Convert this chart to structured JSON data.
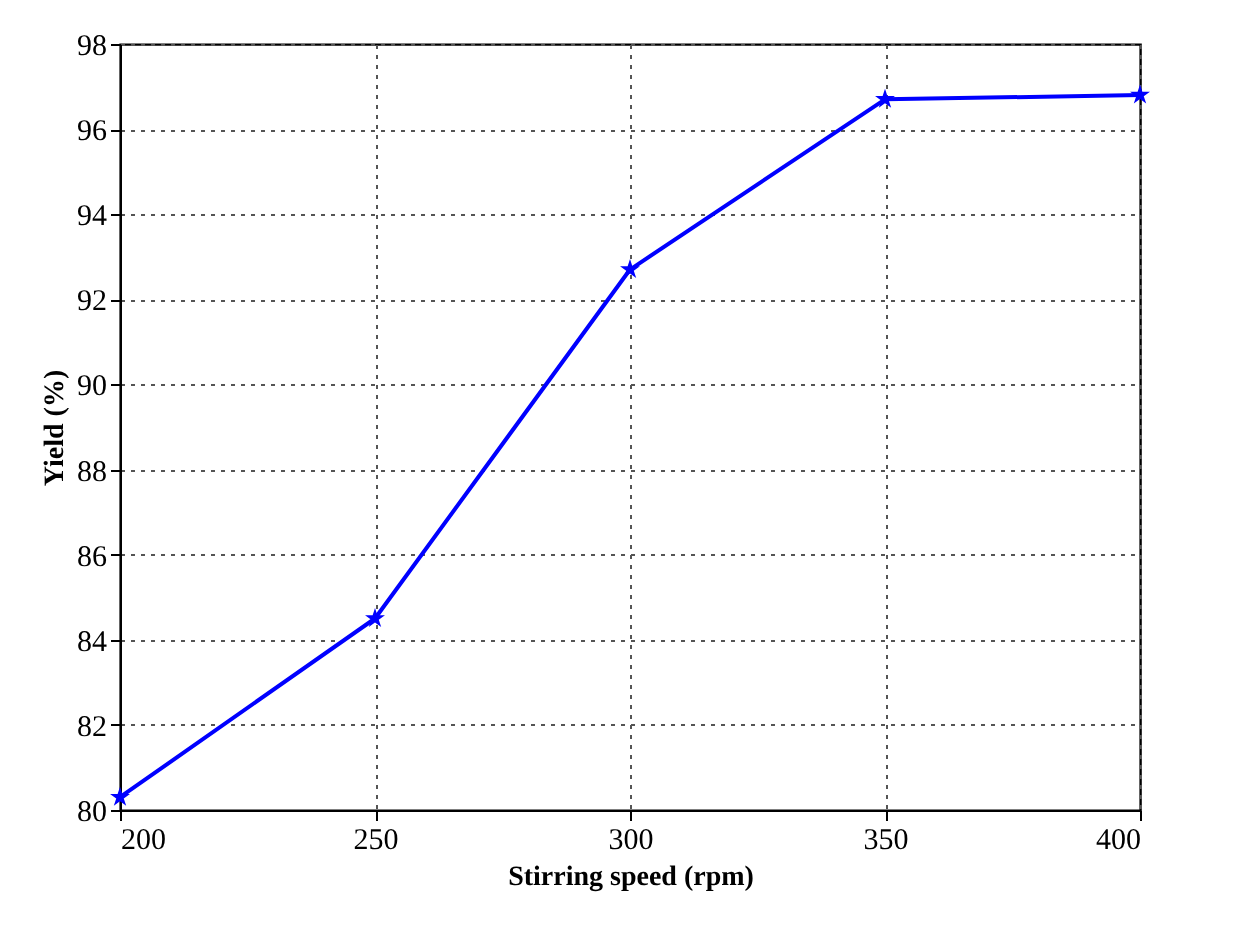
{
  "chart_data": {
    "type": "line",
    "xlabel": "Stirring speed (rpm)",
    "ylabel": "Yield (%)",
    "x": [
      200,
      250,
      300,
      350,
      400
    ],
    "series": [
      {
        "color": "#0000ff",
        "values": [
          80.3,
          84.5,
          92.7,
          96.7,
          96.8
        ]
      }
    ],
    "xlim": [
      200,
      400
    ],
    "xticks": [
      200,
      250,
      300,
      350,
      400
    ],
    "ylim": [
      80,
      98
    ],
    "yticks": [
      80,
      82,
      84,
      86,
      88,
      90,
      92,
      94,
      96,
      98
    ],
    "grid": true,
    "marker": "star",
    "line_style": "solid"
  }
}
